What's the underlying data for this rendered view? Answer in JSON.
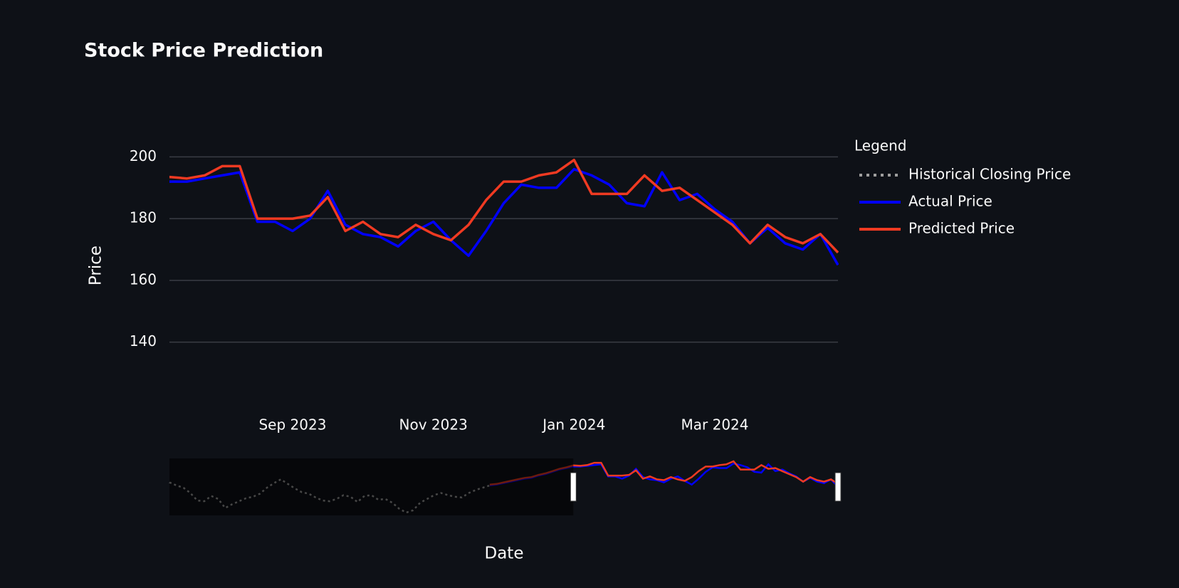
{
  "chart_data": {
    "type": "line",
    "title": "Stock Price Prediction",
    "x_label": "Date",
    "y_label": "Price",
    "legend_title": "Legend",
    "categories": [
      null,
      null,
      null,
      null,
      null,
      null,
      null,
      null,
      null,
      null,
      null,
      null,
      null,
      null,
      null,
      null,
      null,
      null,
      null,
      null,
      null,
      null,
      null,
      null,
      null,
      null,
      null,
      null,
      null,
      null,
      null,
      null,
      null,
      null,
      null,
      null,
      null,
      null,
      null,
      null,
      null,
      null,
      null,
      null,
      null,
      null,
      null,
      null,
      null,
      null,
      null,
      null,
      null,
      null,
      null,
      null,
      null,
      null,
      null,
      null,
      null,
      null,
      null,
      null,
      null,
      "Sep 2023",
      null,
      null,
      null,
      null,
      null,
      null,
      null,
      "Nov 2023",
      null,
      null,
      null,
      null,
      null,
      null,
      null,
      "Jan 2024",
      null,
      null,
      null,
      null,
      null,
      null,
      null,
      "Mar 2024",
      null,
      null,
      null,
      null,
      null,
      null,
      null
    ],
    "xlim": [
      58,
      96
    ],
    "ylim": [
      130,
      210
    ],
    "yticks": [
      140,
      160,
      180,
      200
    ],
    "grid": true,
    "series": [
      {
        "name": "Historical Closing Price",
        "color": "#9e9e9e",
        "dash": "dot",
        "values": [
          171,
          167,
          164,
          157,
          147,
          146,
          153,
          149,
          137,
          142,
          146,
          150,
          152,
          156,
          164,
          170,
          175,
          169,
          163,
          158,
          156,
          151,
          147,
          146,
          149,
          154,
          152,
          145,
          153,
          154,
          148,
          149,
          144,
          136,
          131,
          134,
          144,
          149,
          154,
          157,
          154,
          152,
          151,
          157,
          161,
          164,
          167,
          null,
          null,
          null,
          null,
          null,
          null,
          null,
          null,
          null,
          null,
          null,
          null,
          null,
          null,
          null,
          null,
          null,
          null,
          null,
          null,
          null,
          null,
          null,
          null,
          null,
          null,
          null,
          null,
          null,
          null,
          null,
          null,
          null,
          null,
          null,
          null,
          null,
          null,
          null,
          null,
          null,
          null,
          null,
          null,
          null,
          null,
          null,
          null,
          null,
          null
        ]
      },
      {
        "name": "Actual Price",
        "color": "#0000ff",
        "values": [
          null,
          null,
          null,
          null,
          null,
          null,
          null,
          null,
          null,
          null,
          null,
          null,
          null,
          null,
          null,
          null,
          null,
          null,
          null,
          null,
          null,
          null,
          null,
          null,
          null,
          null,
          null,
          null,
          null,
          null,
          null,
          null,
          null,
          null,
          null,
          null,
          null,
          null,
          null,
          null,
          null,
          null,
          null,
          null,
          null,
          null,
          167,
          168,
          170,
          172,
          174,
          176,
          177,
          180,
          182,
          185,
          188,
          190,
          192,
          192,
          193,
          194,
          195,
          179,
          179,
          176,
          180,
          189,
          178,
          175,
          174,
          171,
          176,
          179,
          173,
          168,
          176,
          185,
          191,
          190,
          190,
          196,
          194,
          191,
          185,
          184,
          195,
          186,
          188,
          183,
          179,
          172,
          177,
          172,
          170,
          175,
          165
        ]
      },
      {
        "name": "Predicted Price",
        "color": "#f03a22",
        "values": [
          null,
          null,
          null,
          null,
          null,
          null,
          null,
          null,
          null,
          null,
          null,
          null,
          null,
          null,
          null,
          null,
          null,
          null,
          null,
          null,
          null,
          null,
          null,
          null,
          null,
          null,
          null,
          null,
          null,
          null,
          null,
          null,
          null,
          null,
          null,
          null,
          null,
          null,
          null,
          null,
          null,
          null,
          null,
          null,
          null,
          null,
          168,
          169,
          171,
          173,
          175,
          177,
          178,
          181,
          183,
          186,
          189,
          191,
          193.5,
          193,
          194,
          197,
          197,
          180,
          180,
          180,
          181,
          187,
          176,
          179,
          175,
          174,
          178,
          175,
          173,
          178,
          186,
          192,
          192,
          194,
          195,
          199,
          188,
          188,
          188,
          194,
          189,
          190,
          186,
          182,
          178,
          172,
          178,
          174,
          172,
          175,
          169
        ]
      }
    ]
  }
}
